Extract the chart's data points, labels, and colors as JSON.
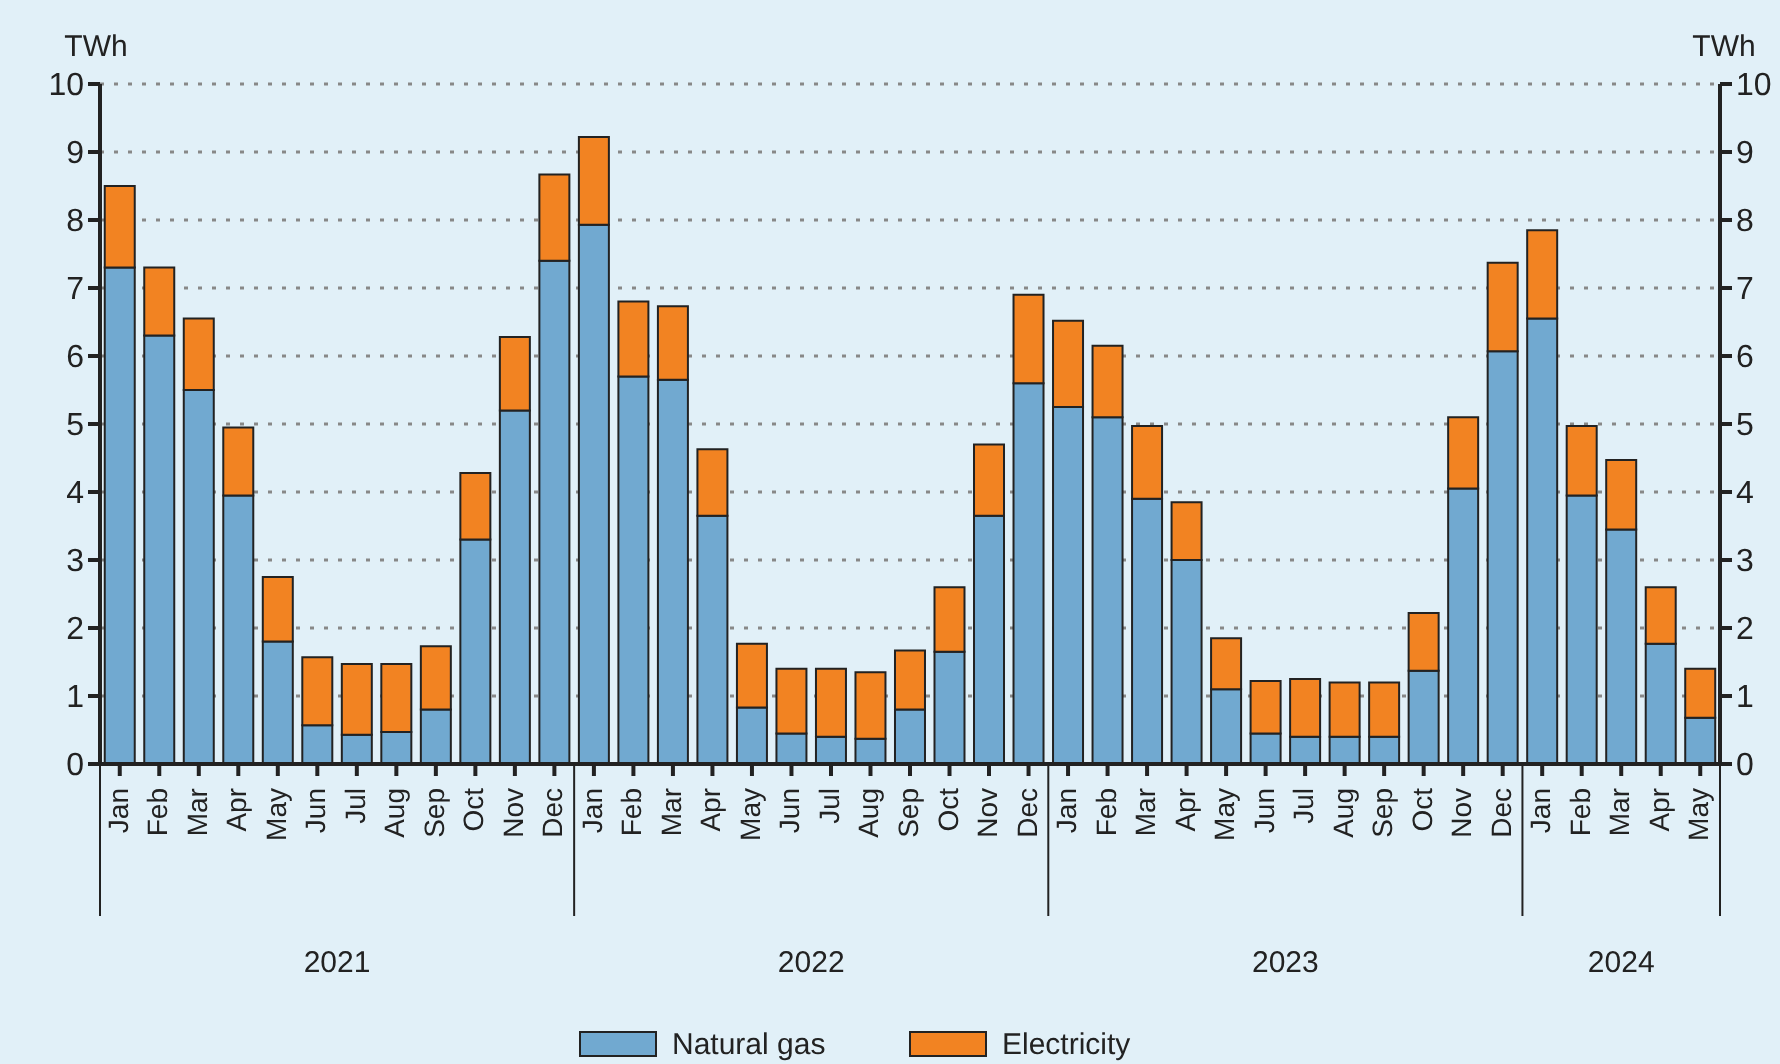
{
  "chart_data": {
    "type": "bar",
    "stacked": true,
    "categories": [
      "Jan",
      "Feb",
      "Mar",
      "Apr",
      "May",
      "Jun",
      "Jul",
      "Aug",
      "Sep",
      "Oct",
      "Nov",
      "Dec",
      "Jan",
      "Feb",
      "Mar",
      "Apr",
      "May",
      "Jun",
      "Jul",
      "Aug",
      "Sep",
      "Oct",
      "Nov",
      "Dec",
      "Jan",
      "Feb",
      "Mar",
      "Apr",
      "May",
      "Jun",
      "Jul",
      "Aug",
      "Sep",
      "Oct",
      "Nov",
      "Dec",
      "Jan",
      "Feb",
      "Mar",
      "Apr",
      "May"
    ],
    "series": [
      {
        "name": "Natural gas",
        "color": "#71a9d0",
        "values": [
          7.3,
          6.3,
          5.5,
          3.95,
          1.8,
          0.57,
          0.43,
          0.47,
          0.8,
          3.3,
          5.2,
          7.4,
          7.93,
          5.7,
          5.65,
          3.65,
          0.83,
          0.45,
          0.4,
          0.37,
          0.8,
          1.65,
          3.65,
          5.6,
          5.25,
          5.1,
          3.9,
          3.0,
          1.1,
          0.45,
          0.4,
          0.4,
          0.4,
          1.37,
          4.05,
          6.07,
          6.55,
          3.95,
          3.45,
          1.77,
          0.68
        ]
      },
      {
        "name": "Electricity",
        "color": "#f28322",
        "values": [
          1.2,
          1.0,
          1.05,
          1.0,
          0.95,
          1.0,
          1.04,
          1.0,
          0.93,
          0.98,
          1.08,
          1.27,
          1.29,
          1.1,
          1.08,
          0.98,
          0.94,
          0.95,
          1.0,
          0.98,
          0.87,
          0.95,
          1.05,
          1.3,
          1.27,
          1.05,
          1.07,
          0.85,
          0.75,
          0.77,
          0.85,
          0.8,
          0.8,
          0.85,
          1.05,
          1.3,
          1.3,
          1.02,
          1.02,
          0.83,
          0.72
        ]
      }
    ],
    "ylabel": "TWh",
    "y2label": "TWh",
    "ylim": [
      0,
      10
    ],
    "yticks": [
      0,
      1,
      2,
      3,
      4,
      5,
      6,
      7,
      8,
      9,
      10
    ],
    "y2lim": [
      0,
      10
    ],
    "y2ticks": [
      0,
      1,
      2,
      3,
      4,
      5,
      6,
      7,
      8,
      9,
      10
    ],
    "annotations": [
      "2021",
      "2022",
      "2023",
      "2024"
    ],
    "grid": "y",
    "legend": "bottom"
  }
}
